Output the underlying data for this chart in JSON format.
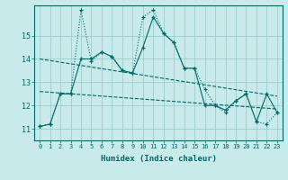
{
  "xlabel": "Humidex (Indice chaleur)",
  "bg_color": "#c8eaea",
  "grid_color": "#9ecece",
  "line_color": "#006868",
  "xlim": [
    -0.5,
    23.5
  ],
  "ylim": [
    10.5,
    16.3
  ],
  "yticks": [
    11,
    12,
    13,
    14,
    15
  ],
  "xticks": [
    0,
    1,
    2,
    3,
    4,
    5,
    6,
    7,
    8,
    9,
    10,
    11,
    12,
    13,
    14,
    15,
    16,
    17,
    18,
    19,
    20,
    21,
    22,
    23
  ],
  "series1_x": [
    0,
    1,
    2,
    3,
    4,
    5,
    6,
    7,
    8,
    9,
    10,
    11,
    12,
    13,
    14,
    15,
    16,
    17,
    18,
    19,
    20,
    21,
    22,
    23
  ],
  "series1_y": [
    11.1,
    11.2,
    12.5,
    12.5,
    16.1,
    13.9,
    14.3,
    14.1,
    13.5,
    13.4,
    15.8,
    16.1,
    15.1,
    14.7,
    13.6,
    13.6,
    12.7,
    12.0,
    11.7,
    12.2,
    12.5,
    11.3,
    11.2,
    11.7
  ],
  "series2_x": [
    0,
    1,
    2,
    3,
    4,
    5,
    6,
    7,
    8,
    9,
    10,
    11,
    12,
    13,
    14,
    15,
    16,
    17,
    18,
    19,
    20,
    21,
    22,
    23
  ],
  "series2_y": [
    11.1,
    11.2,
    12.5,
    12.5,
    14.0,
    14.0,
    14.3,
    14.1,
    13.5,
    13.4,
    14.5,
    15.8,
    15.1,
    14.7,
    13.6,
    13.6,
    12.0,
    12.0,
    11.8,
    12.2,
    12.5,
    11.3,
    12.5,
    11.7
  ],
  "trend1_x": [
    0,
    23
  ],
  "trend1_y": [
    14.0,
    12.4
  ],
  "trend2_x": [
    0,
    23
  ],
  "trend2_y": [
    12.6,
    11.85
  ]
}
